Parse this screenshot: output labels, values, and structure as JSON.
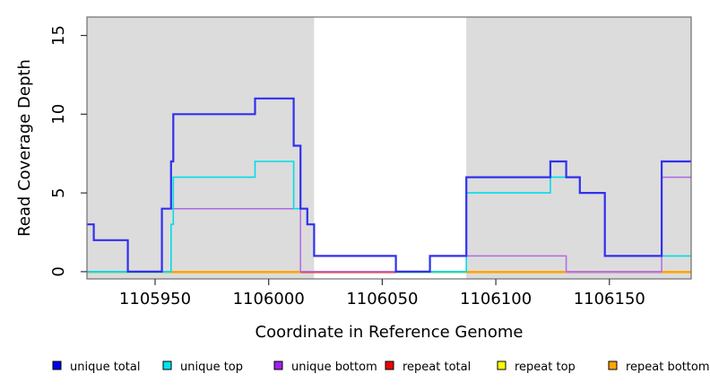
{
  "chart_data": {
    "type": "line",
    "line_style": "step-after",
    "title": "",
    "xlabel": "Coordinate in Reference Genome",
    "ylabel": "Read Coverage Depth",
    "xlim": [
      1105920,
      1106186
    ],
    "ylim": [
      -0.46,
      16.17
    ],
    "xticks": [
      1105950,
      1106000,
      1106050,
      1106100,
      1106150
    ],
    "yticks": [
      0,
      5,
      10,
      15
    ],
    "grid": false,
    "legend_position": "bottom",
    "background_shading": {
      "color": "#DCDCDC",
      "regions": [
        [
          1105920,
          1106020
        ],
        [
          1106087,
          1106186
        ]
      ]
    },
    "series": [
      {
        "name": "unique total",
        "legend_color": "#0000EE",
        "line_color": "#3030F0",
        "line_width": 2.2,
        "steps": [
          [
            1105920,
            3
          ],
          [
            1105923,
            2
          ],
          [
            1105938,
            0
          ],
          [
            1105953,
            4
          ],
          [
            1105957,
            7
          ],
          [
            1105958,
            10
          ],
          [
            1105994,
            11
          ],
          [
            1106011,
            8
          ],
          [
            1106014,
            4
          ],
          [
            1106017,
            3
          ],
          [
            1106020,
            1
          ],
          [
            1106056,
            0
          ],
          [
            1106071,
            1
          ],
          [
            1106087,
            6
          ],
          [
            1106124,
            7
          ],
          [
            1106131,
            6
          ],
          [
            1106137,
            5
          ],
          [
            1106148,
            1
          ],
          [
            1106173,
            7
          ]
        ]
      },
      {
        "name": "unique top",
        "legend_color": "#00E5EE",
        "line_color": "#00DDE8",
        "line_width": 1.6,
        "steps": [
          [
            1105920,
            0
          ],
          [
            1105957,
            3
          ],
          [
            1105958,
            6
          ],
          [
            1105994,
            7
          ],
          [
            1106011,
            4
          ],
          [
            1106017,
            3
          ],
          [
            1106020,
            1
          ],
          [
            1106056,
            0
          ],
          [
            1106087,
            5
          ],
          [
            1106124,
            6
          ],
          [
            1106137,
            5
          ],
          [
            1106148,
            1
          ]
        ]
      },
      {
        "name": "unique bottom",
        "legend_color": "#A020F0",
        "line_color": "#B168E6",
        "line_width": 1.5,
        "steps": [
          [
            1105920,
            0
          ],
          [
            1105953,
            4
          ],
          [
            1106014,
            0
          ],
          [
            1106071,
            1
          ],
          [
            1106131,
            0
          ],
          [
            1106173,
            6
          ]
        ]
      },
      {
        "name": "repeat total",
        "legend_color": "#EE0000",
        "line_color": "#EE0000",
        "line_width": 1.2,
        "steps": [
          [
            1105920,
            0
          ]
        ]
      },
      {
        "name": "repeat top",
        "legend_color": "#FFFF00",
        "line_color": "#FFFF00",
        "line_width": 1.2,
        "steps": [
          [
            1105920,
            0
          ]
        ]
      },
      {
        "name": "repeat bottom",
        "legend_color": "#FFA500",
        "line_color": "#FFA500",
        "line_width": 1.5,
        "steps": [
          [
            1105920,
            0
          ]
        ]
      }
    ],
    "zero_line_overlays": [
      [
        1105920,
        1105957,
        "#7FD77F"
      ],
      [
        1105957,
        1106014,
        "#FFA500"
      ],
      [
        1106014,
        1106056,
        "#DE4860"
      ],
      [
        1106056,
        1106087,
        "#7FD77F"
      ],
      [
        1106087,
        1106131,
        "#FFA500"
      ],
      [
        1106131,
        1106173,
        "#CC7BCB"
      ],
      [
        1106173,
        1106186,
        "#FFA500"
      ]
    ],
    "render_order": [
      3,
      4,
      5,
      2,
      "zero",
      1,
      0
    ],
    "colors": {
      "band": "#DCDCDC",
      "box": "#6E6E6E",
      "tick": "#333333"
    }
  }
}
